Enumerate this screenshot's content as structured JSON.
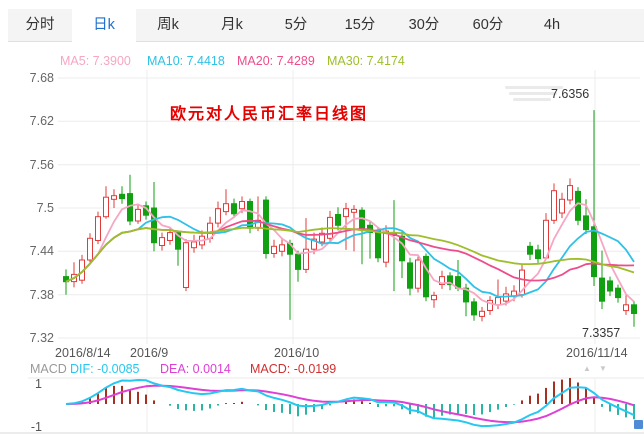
{
  "tabs": {
    "active_index": 1,
    "items": [
      {
        "label": "分时"
      },
      {
        "label": "日k"
      },
      {
        "label": "周k"
      },
      {
        "label": "月k"
      },
      {
        "label": "5分"
      },
      {
        "label": "15分"
      },
      {
        "label": "30分"
      },
      {
        "label": "60分"
      },
      {
        "label": "4h"
      }
    ]
  },
  "ma_legend": {
    "ma5": "MA5: 7.3900",
    "ma10": "MA10: 7.4418",
    "ma20": "MA20: 7.4289",
    "ma30": "MA30: 7.4174"
  },
  "main_chart": {
    "title": "欧元对人民币汇率日线图",
    "y_axis": [
      "7.68",
      "7.62",
      "7.56",
      "7.5",
      "7.44",
      "7.38",
      "7.32"
    ],
    "x_axis": [
      "2016/8/14",
      "2016/9",
      "2016/10",
      "2016/11/14"
    ],
    "high_label": "7.6356",
    "low_label": "7.3357"
  },
  "macd_panel": {
    "name": "MACD",
    "dif_label": "DIF: -0.0085",
    "dea_label": "DEA: 0.0014",
    "macd_label": "MACD: -0.0199",
    "y_axis": [
      "1",
      "-1"
    ],
    "up_arrow": "▲",
    "down_arrow": "▼"
  },
  "colors": {
    "up": "#e23b3b",
    "down": "#11a011",
    "ma5": "#f7a6c3",
    "ma10": "#2fc1e6",
    "ma20": "#ee4d8b",
    "ma30": "#9ebe2a",
    "dif": "#25c8f0",
    "dea": "#de3fd4",
    "hist_up": "#a5321e",
    "hist_down": "#2ab5a5",
    "tab_active": "#1e6fce",
    "title": "#e60000",
    "grid": "#ececec"
  },
  "chart_data": {
    "type": "candlestick",
    "title": "欧元对人民币汇率日线图",
    "instrument_note": "EUR/CNY daily K-line (from title text)",
    "y_ticks": [
      7.68,
      7.62,
      7.56,
      7.5,
      7.44,
      7.38,
      7.32
    ],
    "x_labels": [
      "2016/8/14",
      "2016/9",
      "2016/10",
      "2016/11/14"
    ],
    "high_annotation": 7.6356,
    "low_annotation": 7.3357,
    "moving_averages": {
      "MA5": 7.39,
      "MA10": 7.4418,
      "MA20": 7.4289,
      "MA30": 7.4174
    },
    "candle_format": [
      "open",
      "close",
      "high",
      "low"
    ],
    "candles": [
      [
        7.405,
        7.398,
        7.415,
        7.38
      ],
      [
        7.398,
        7.408,
        7.425,
        7.39
      ],
      [
        7.4,
        7.428,
        7.435,
        7.395
      ],
      [
        7.428,
        7.458,
        7.465,
        7.425
      ],
      [
        7.455,
        7.488,
        7.495,
        7.45
      ],
      [
        7.488,
        7.515,
        7.53,
        7.485
      ],
      [
        7.512,
        7.517,
        7.526,
        7.5
      ],
      [
        7.519,
        7.513,
        7.53,
        7.506
      ],
      [
        7.52,
        7.482,
        7.546,
        7.476
      ],
      [
        7.482,
        7.498,
        7.506,
        7.478
      ],
      [
        7.503,
        7.49,
        7.509,
        7.484
      ],
      [
        7.5,
        7.452,
        7.536,
        7.44
      ],
      [
        7.448,
        7.459,
        7.466,
        7.441
      ],
      [
        7.455,
        7.466,
        7.473,
        7.449
      ],
      [
        7.466,
        7.443,
        7.469,
        7.42
      ],
      [
        7.39,
        7.452,
        7.457,
        7.385
      ],
      [
        7.445,
        7.453,
        7.463,
        7.438
      ],
      [
        7.449,
        7.461,
        7.469,
        7.443
      ],
      [
        7.458,
        7.479,
        7.488,
        7.452
      ],
      [
        7.479,
        7.499,
        7.509,
        7.473
      ],
      [
        7.495,
        7.506,
        7.526,
        7.49
      ],
      [
        7.506,
        7.492,
        7.513,
        7.486
      ],
      [
        7.499,
        7.509,
        7.516,
        7.493
      ],
      [
        7.509,
        7.472,
        7.513,
        7.465
      ],
      [
        7.472,
        7.483,
        7.516,
        7.468
      ],
      [
        7.511,
        7.437,
        7.516,
        7.43
      ],
      [
        7.437,
        7.447,
        7.456,
        7.431
      ],
      [
        7.44,
        7.449,
        7.459,
        7.433
      ],
      [
        7.451,
        7.436,
        7.456,
        7.345
      ],
      [
        7.436,
        7.415,
        7.441,
        7.398
      ],
      [
        7.415,
        7.443,
        7.486,
        7.41
      ],
      [
        7.443,
        7.457,
        7.466,
        7.436
      ],
      [
        7.453,
        7.465,
        7.473,
        7.447
      ],
      [
        7.458,
        7.487,
        7.496,
        7.452
      ],
      [
        7.491,
        7.476,
        7.501,
        7.469
      ],
      [
        7.488,
        7.499,
        7.507,
        7.442
      ],
      [
        7.494,
        7.498,
        7.504,
        7.44
      ],
      [
        7.497,
        7.47,
        7.501,
        7.422
      ],
      [
        7.476,
        7.466,
        7.481,
        7.43
      ],
      [
        7.469,
        7.431,
        7.474,
        7.425
      ],
      [
        7.425,
        7.468,
        7.476,
        7.418
      ],
      [
        7.465,
        7.462,
        7.511,
        7.385
      ],
      [
        7.461,
        7.427,
        7.467,
        7.403
      ],
      [
        7.424,
        7.389,
        7.431,
        7.379
      ],
      [
        7.389,
        7.428,
        7.433,
        7.383
      ],
      [
        7.433,
        7.377,
        7.437,
        7.371
      ],
      [
        7.373,
        7.379,
        7.384,
        7.362
      ],
      [
        7.394,
        7.405,
        7.413,
        7.388
      ],
      [
        7.406,
        7.394,
        7.411,
        7.386
      ],
      [
        7.405,
        7.389,
        7.428,
        7.385
      ],
      [
        7.389,
        7.37,
        7.395,
        7.35
      ],
      [
        7.37,
        7.352,
        7.375,
        7.344
      ],
      [
        7.35,
        7.357,
        7.363,
        7.343
      ],
      [
        7.358,
        7.372,
        7.378,
        7.352
      ],
      [
        7.366,
        7.376,
        7.401,
        7.36
      ],
      [
        7.371,
        7.381,
        7.391,
        7.365
      ],
      [
        7.378,
        7.385,
        7.393,
        7.371
      ],
      [
        7.38,
        7.414,
        7.423,
        7.376
      ],
      [
        7.447,
        7.436,
        7.453,
        7.428
      ],
      [
        7.442,
        7.43,
        7.449,
        7.424
      ],
      [
        7.431,
        7.483,
        7.493,
        7.428
      ],
      [
        7.483,
        7.524,
        7.534,
        7.478
      ],
      [
        7.493,
        7.512,
        7.521,
        7.486
      ],
      [
        7.511,
        7.531,
        7.541,
        7.505
      ],
      [
        7.523,
        7.483,
        7.529,
        7.476
      ],
      [
        7.489,
        7.47,
        7.512,
        7.464
      ],
      [
        7.474,
        7.405,
        7.6356,
        7.392
      ],
      [
        7.403,
        7.371,
        7.441,
        7.36
      ],
      [
        7.399,
        7.385,
        7.405,
        7.378
      ],
      [
        7.389,
        7.376,
        7.394,
        7.369
      ],
      [
        7.358,
        7.366,
        7.379,
        7.352
      ],
      [
        7.366,
        7.354,
        7.371,
        7.3357
      ]
    ],
    "indicator": {
      "type": "MACD",
      "dif": -0.0085,
      "dea": 0.0014,
      "macd": -0.0199,
      "y_axis": [
        1,
        -1
      ]
    }
  }
}
